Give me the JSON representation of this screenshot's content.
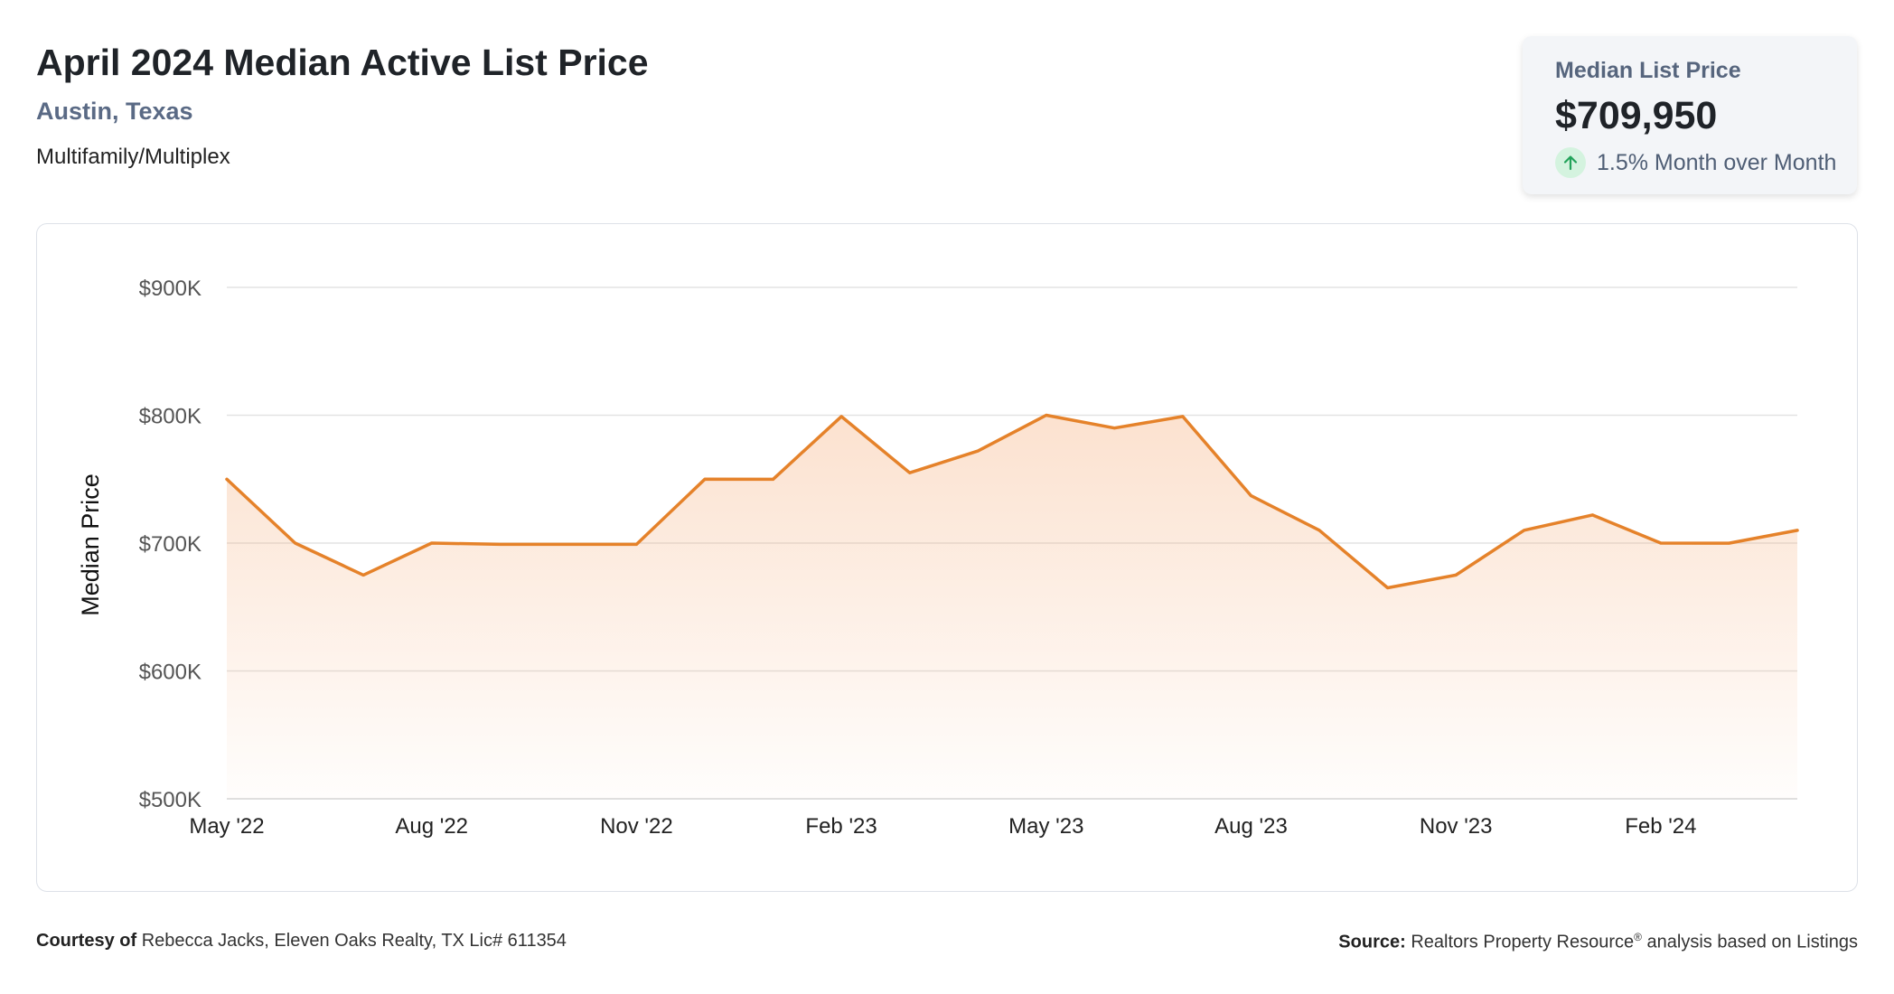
{
  "header": {
    "title": "April 2024 Median Active List Price",
    "location": "Austin, Texas",
    "property_type": "Multifamily/Multiplex"
  },
  "kpi": {
    "label": "Median List Price",
    "value": "$709,950",
    "change_text": "1.5% Month over Month",
    "direction": "up",
    "icon": "arrow-up-icon",
    "accent_color": "#22a35a",
    "accent_bg": "#d4f3df"
  },
  "footer": {
    "courtesy_label": "Courtesy of",
    "courtesy_text": "Rebecca Jacks, Eleven Oaks Realty, TX Lic# 611354",
    "source_label": "Source:",
    "source_text_1": "Realtors Property Resource",
    "source_reg": "®",
    "source_text_2": " analysis based on Listings"
  },
  "chart_data": {
    "type": "area",
    "ylabel": "Median Price",
    "ylim": [
      500000,
      900000
    ],
    "yticks": [
      {
        "value": 900000,
        "label": "$900K"
      },
      {
        "value": 800000,
        "label": "$800K"
      },
      {
        "value": 700000,
        "label": "$700K"
      },
      {
        "value": 600000,
        "label": "$600K"
      },
      {
        "value": 500000,
        "label": "$500K"
      }
    ],
    "x": [
      "May '22",
      "Jun '22",
      "Jul '22",
      "Aug '22",
      "Sep '22",
      "Oct '22",
      "Nov '22",
      "Dec '22",
      "Jan '23",
      "Feb '23",
      "Mar '23",
      "Apr '23",
      "May '23",
      "Jun '23",
      "Jul '23",
      "Aug '23",
      "Sep '23",
      "Oct '23",
      "Nov '23",
      "Dec '23",
      "Jan '24",
      "Feb '24",
      "Mar '24",
      "Apr '24"
    ],
    "xtick_labels": [
      "May '22",
      "Aug '22",
      "Nov '22",
      "Feb '23",
      "May '23",
      "Aug '23",
      "Nov '23",
      "Feb '24"
    ],
    "series": [
      {
        "values": [
          750000,
          700000,
          675000,
          700000,
          699000,
          699000,
          699000,
          750000,
          749900,
          799000,
          755000,
          772000,
          800000,
          790000,
          799000,
          737000,
          710000,
          665000,
          675000,
          710000,
          722000,
          700000,
          699900,
          709950
        ],
        "color": "#e5822a"
      }
    ],
    "grid": true,
    "legend": "none"
  }
}
